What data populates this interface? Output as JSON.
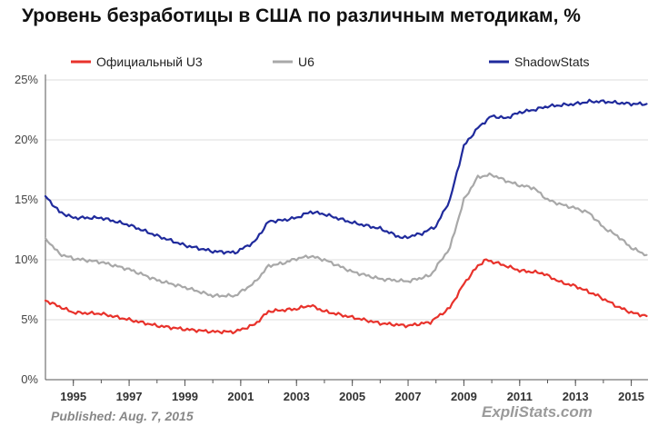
{
  "page": {
    "title": "Уровень безработицы в США по различным методикам, %"
  },
  "footer": {
    "published": "Published: Aug. 7, 2015",
    "brand": "ExpliStats.com"
  },
  "chart_data": {
    "type": "line",
    "title": "Уровень безработицы в США по различным методикам, %",
    "xlabel": "",
    "ylabel": "",
    "xlim": [
      1994.0,
      2015.6
    ],
    "ylim": [
      0,
      25
    ],
    "grid": true,
    "legend_position": "top",
    "y_ticks": [
      0,
      5,
      10,
      15,
      20,
      25
    ],
    "y_tick_labels": [
      "0%",
      "5%",
      "10%",
      "15%",
      "20%",
      "25%"
    ],
    "x_ticks": [
      1995,
      1997,
      1999,
      2001,
      2003,
      2005,
      2007,
      2009,
      2011,
      2013,
      2015
    ],
    "x_tick_labels": [
      "1995",
      "1997",
      "1999",
      "2001",
      "2003",
      "2005",
      "2007",
      "2009",
      "2011",
      "2013",
      "2015"
    ],
    "series": [
      {
        "name": "Официальный U3",
        "color": "#e8322b",
        "points": [
          [
            1994.0,
            6.6
          ],
          [
            1994.5,
            6.1
          ],
          [
            1995.0,
            5.6
          ],
          [
            1996.0,
            5.5
          ],
          [
            1997.0,
            5.0
          ],
          [
            1998.0,
            4.5
          ],
          [
            1999.0,
            4.2
          ],
          [
            2000.0,
            4.0
          ],
          [
            2000.8,
            4.0
          ],
          [
            2001.5,
            4.6
          ],
          [
            2002.0,
            5.7
          ],
          [
            2002.5,
            5.8
          ],
          [
            2003.0,
            5.9
          ],
          [
            2003.5,
            6.2
          ],
          [
            2004.0,
            5.7
          ],
          [
            2005.0,
            5.2
          ],
          [
            2006.0,
            4.7
          ],
          [
            2007.0,
            4.5
          ],
          [
            2007.8,
            4.8
          ],
          [
            2008.5,
            6.0
          ],
          [
            2009.0,
            8.0
          ],
          [
            2009.5,
            9.5
          ],
          [
            2009.8,
            10.0
          ],
          [
            2010.5,
            9.5
          ],
          [
            2011.0,
            9.1
          ],
          [
            2011.8,
            8.9
          ],
          [
            2012.5,
            8.1
          ],
          [
            2013.0,
            7.8
          ],
          [
            2013.8,
            7.0
          ],
          [
            2014.5,
            6.1
          ],
          [
            2015.0,
            5.6
          ],
          [
            2015.55,
            5.3
          ]
        ]
      },
      {
        "name": "U6",
        "color": "#a8a8a8",
        "points": [
          [
            1994.0,
            11.8
          ],
          [
            1994.5,
            10.5
          ],
          [
            1995.0,
            10.1
          ],
          [
            1996.0,
            9.8
          ],
          [
            1997.0,
            9.2
          ],
          [
            1998.0,
            8.3
          ],
          [
            1999.0,
            7.7
          ],
          [
            2000.0,
            7.0
          ],
          [
            2000.8,
            7.0
          ],
          [
            2001.5,
            8.1
          ],
          [
            2002.0,
            9.5
          ],
          [
            2002.5,
            9.7
          ],
          [
            2003.0,
            10.1
          ],
          [
            2003.5,
            10.3
          ],
          [
            2004.0,
            10.0
          ],
          [
            2005.0,
            9.0
          ],
          [
            2006.0,
            8.4
          ],
          [
            2007.0,
            8.2
          ],
          [
            2007.8,
            8.7
          ],
          [
            2008.5,
            11.0
          ],
          [
            2009.0,
            15.0
          ],
          [
            2009.5,
            16.9
          ],
          [
            2010.0,
            17.1
          ],
          [
            2010.5,
            16.6
          ],
          [
            2011.0,
            16.2
          ],
          [
            2011.5,
            16.0
          ],
          [
            2012.0,
            15.0
          ],
          [
            2012.5,
            14.6
          ],
          [
            2013.0,
            14.3
          ],
          [
            2013.5,
            13.9
          ],
          [
            2014.0,
            12.7
          ],
          [
            2014.5,
            12.0
          ],
          [
            2015.0,
            11.0
          ],
          [
            2015.55,
            10.4
          ]
        ]
      },
      {
        "name": "ShadowStats",
        "color": "#1f2a9c",
        "points": [
          [
            1994.0,
            15.3
          ],
          [
            1994.5,
            14.0
          ],
          [
            1995.0,
            13.5
          ],
          [
            1996.0,
            13.5
          ],
          [
            1997.0,
            12.9
          ],
          [
            1998.0,
            12.0
          ],
          [
            1999.0,
            11.2
          ],
          [
            2000.0,
            10.7
          ],
          [
            2000.8,
            10.6
          ],
          [
            2001.5,
            11.5
          ],
          [
            2002.0,
            13.2
          ],
          [
            2002.5,
            13.3
          ],
          [
            2003.0,
            13.5
          ],
          [
            2003.5,
            14.0
          ],
          [
            2004.0,
            13.8
          ],
          [
            2005.0,
            13.1
          ],
          [
            2006.0,
            12.6
          ],
          [
            2006.8,
            11.8
          ],
          [
            2007.5,
            12.2
          ],
          [
            2008.0,
            12.8
          ],
          [
            2008.5,
            15.0
          ],
          [
            2009.0,
            19.5
          ],
          [
            2009.5,
            21.0
          ],
          [
            2010.0,
            22.0
          ],
          [
            2010.5,
            21.8
          ],
          [
            2011.0,
            22.3
          ],
          [
            2011.5,
            22.5
          ],
          [
            2012.0,
            22.8
          ],
          [
            2012.5,
            22.9
          ],
          [
            2013.0,
            23.0
          ],
          [
            2013.5,
            23.2
          ],
          [
            2014.0,
            23.2
          ],
          [
            2014.5,
            23.1
          ],
          [
            2015.0,
            23.0
          ],
          [
            2015.55,
            23.0
          ]
        ]
      }
    ]
  }
}
